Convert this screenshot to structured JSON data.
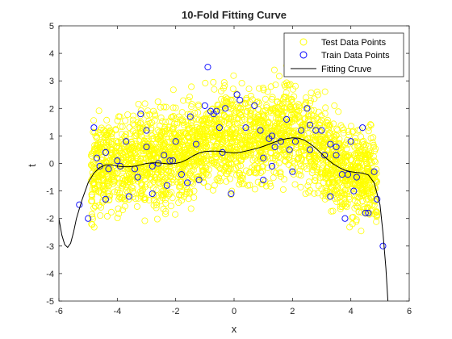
{
  "chart_data": {
    "type": "scatter",
    "title": "10-Fold Fitting Curve",
    "xlabel": "x",
    "ylabel": "t",
    "xlim": [
      -6,
      6
    ],
    "ylim": [
      -5,
      5
    ],
    "xticks": [
      "-6",
      "-4",
      "-2",
      "0",
      "2",
      "4",
      "6"
    ],
    "yticks": [
      "-5",
      "-4",
      "-3",
      "-2",
      "-1",
      "0",
      "1",
      "2",
      "3",
      "4",
      "5"
    ],
    "grid": false,
    "legend_position": "top-right",
    "series": [
      {
        "name": "Test Data Points",
        "marker": "open-circle",
        "color": "#ffff00",
        "note_generation": "dense noisy cloud about the fitting curve across x in [-4.9, 4.9], mostly within about ±2 of the curve",
        "points": []
      },
      {
        "name": "Train Data Points",
        "marker": "open-circle",
        "color": "#0000ff",
        "points": [
          [
            -4.8,
            1.3
          ],
          [
            -4.7,
            0.2
          ],
          [
            -4.6,
            -0.1
          ],
          [
            -4.4,
            0.4
          ],
          [
            -4.4,
            -1.3
          ],
          [
            -4.3,
            -0.2
          ],
          [
            -4.0,
            0.1
          ],
          [
            -3.9,
            -0.1
          ],
          [
            -3.7,
            0.8
          ],
          [
            -3.6,
            -1.2
          ],
          [
            -3.4,
            -0.2
          ],
          [
            -3.3,
            -0.5
          ],
          [
            -3.2,
            1.8
          ],
          [
            -3.0,
            0.6
          ],
          [
            -3.0,
            1.2
          ],
          [
            -2.8,
            -0.1
          ],
          [
            -2.8,
            -1.1
          ],
          [
            -2.6,
            0.0
          ],
          [
            -2.4,
            0.3
          ],
          [
            -2.3,
            -0.8
          ],
          [
            -2.2,
            0.1
          ],
          [
            -2.1,
            0.1
          ],
          [
            -2.0,
            0.8
          ],
          [
            -1.8,
            -0.4
          ],
          [
            -1.6,
            -0.7
          ],
          [
            -1.5,
            1.7
          ],
          [
            -1.3,
            0.7
          ],
          [
            -1.2,
            -0.6
          ],
          [
            -1.0,
            2.1
          ],
          [
            -0.9,
            3.5
          ],
          [
            -0.8,
            1.9
          ],
          [
            -0.7,
            1.8
          ],
          [
            -0.6,
            1.9
          ],
          [
            -0.5,
            1.3
          ],
          [
            -0.4,
            0.4
          ],
          [
            -0.3,
            2.0
          ],
          [
            -0.1,
            -1.1
          ],
          [
            0.1,
            2.5
          ],
          [
            0.2,
            2.3
          ],
          [
            0.4,
            1.3
          ],
          [
            0.7,
            2.1
          ],
          [
            0.9,
            1.2
          ],
          [
            1.0,
            0.2
          ],
          [
            1.0,
            -0.6
          ],
          [
            1.2,
            0.9
          ],
          [
            1.3,
            1.0
          ],
          [
            1.3,
            -0.1
          ],
          [
            1.4,
            0.6
          ],
          [
            1.6,
            0.8
          ],
          [
            1.8,
            1.6
          ],
          [
            1.9,
            0.5
          ],
          [
            2.0,
            -0.3
          ],
          [
            2.1,
            0.8
          ],
          [
            2.3,
            1.2
          ],
          [
            2.5,
            2.0
          ],
          [
            2.6,
            0.5
          ],
          [
            2.6,
            1.4
          ],
          [
            2.8,
            1.2
          ],
          [
            3.0,
            1.2
          ],
          [
            3.1,
            0.3
          ],
          [
            3.3,
            0.7
          ],
          [
            3.3,
            -1.2
          ],
          [
            3.5,
            0.3
          ],
          [
            3.5,
            0.6
          ],
          [
            3.7,
            -0.4
          ],
          [
            3.8,
            -2.0
          ],
          [
            3.9,
            -0.4
          ],
          [
            4.0,
            0.8
          ],
          [
            4.1,
            -1.0
          ],
          [
            4.2,
            -0.5
          ],
          [
            4.4,
            1.3
          ],
          [
            4.5,
            -1.8
          ],
          [
            4.6,
            -1.8
          ],
          [
            4.8,
            -0.3
          ],
          [
            4.9,
            -1.3
          ],
          [
            5.1,
            -3.0
          ],
          [
            -5.3,
            -1.5
          ],
          [
            -5.0,
            -2.0
          ]
        ]
      },
      {
        "name": "Fitting Cruve",
        "line": "solid",
        "color": "#000000",
        "points": [
          [
            -6.0,
            -2.0
          ],
          [
            -5.9,
            -2.6
          ],
          [
            -5.8,
            -2.95
          ],
          [
            -5.7,
            -3.05
          ],
          [
            -5.6,
            -2.9
          ],
          [
            -5.5,
            -2.5
          ],
          [
            -5.4,
            -2.0
          ],
          [
            -5.2,
            -1.3
          ],
          [
            -5.0,
            -0.7
          ],
          [
            -4.8,
            -0.35
          ],
          [
            -4.6,
            -0.15
          ],
          [
            -4.4,
            -0.05
          ],
          [
            -4.2,
            -0.05
          ],
          [
            -4.0,
            -0.1
          ],
          [
            -3.8,
            -0.12
          ],
          [
            -3.6,
            -0.12
          ],
          [
            -3.4,
            -0.1
          ],
          [
            -3.2,
            -0.05
          ],
          [
            -3.0,
            0.0
          ],
          [
            -2.8,
            0.02
          ],
          [
            -2.6,
            0.02
          ],
          [
            -2.4,
            0.0
          ],
          [
            -2.2,
            -0.02
          ],
          [
            -2.0,
            0.0
          ],
          [
            -1.8,
            0.05
          ],
          [
            -1.6,
            0.15
          ],
          [
            -1.4,
            0.28
          ],
          [
            -1.2,
            0.38
          ],
          [
            -1.0,
            0.43
          ],
          [
            -0.8,
            0.45
          ],
          [
            -0.6,
            0.45
          ],
          [
            -0.4,
            0.43
          ],
          [
            -0.2,
            0.4
          ],
          [
            0.0,
            0.38
          ],
          [
            0.2,
            0.4
          ],
          [
            0.4,
            0.45
          ],
          [
            0.6,
            0.5
          ],
          [
            0.8,
            0.55
          ],
          [
            1.0,
            0.62
          ],
          [
            1.2,
            0.7
          ],
          [
            1.4,
            0.78
          ],
          [
            1.6,
            0.85
          ],
          [
            1.8,
            0.9
          ],
          [
            2.0,
            0.93
          ],
          [
            2.2,
            0.92
          ],
          [
            2.4,
            0.85
          ],
          [
            2.6,
            0.72
          ],
          [
            2.8,
            0.55
          ],
          [
            3.0,
            0.35
          ],
          [
            3.2,
            0.15
          ],
          [
            3.4,
            -0.02
          ],
          [
            3.6,
            -0.15
          ],
          [
            3.8,
            -0.25
          ],
          [
            4.0,
            -0.3
          ],
          [
            4.2,
            -0.33
          ],
          [
            4.4,
            -0.35
          ],
          [
            4.6,
            -0.42
          ],
          [
            4.8,
            -0.7
          ],
          [
            5.0,
            -1.5
          ],
          [
            5.1,
            -2.5
          ],
          [
            5.2,
            -3.8
          ],
          [
            5.27,
            -5.0
          ]
        ]
      }
    ]
  },
  "legend": {
    "items": [
      {
        "label": "Test Data Points",
        "color": "#ffff00",
        "kind": "circle"
      },
      {
        "label": "Train Data Points",
        "color": "#0000ff",
        "kind": "circle"
      },
      {
        "label": "Fitting Cruve",
        "color": "#000000",
        "kind": "line"
      }
    ]
  },
  "colors": {
    "axis": "#262626",
    "background": "#ffffff"
  }
}
